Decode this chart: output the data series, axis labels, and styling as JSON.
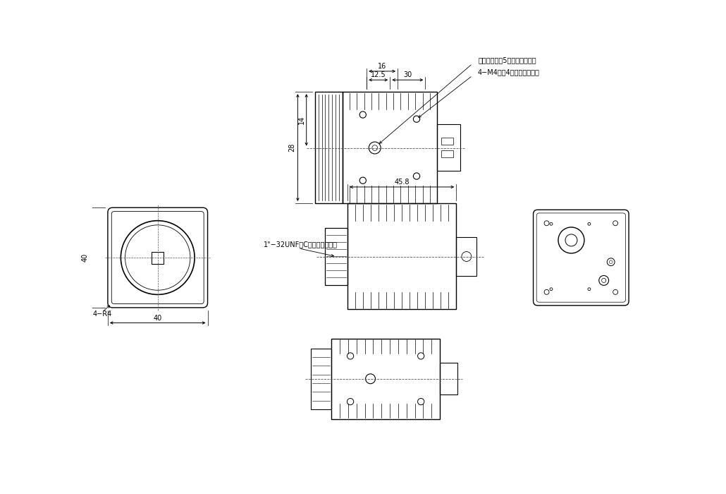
{
  "bg_color": "#ffffff",
  "line_color": "#000000",
  "dim_color": "#000000",
  "centerline_color": "#555555",
  "annotations": {
    "sankyaku": "三脚ネジ深サ5（上下面共通）",
    "m4": "4−M4深サ4（上下面共通）",
    "c_mount": "1\"−32UNF（Cマウントネジ）",
    "r4": "4−R4"
  }
}
